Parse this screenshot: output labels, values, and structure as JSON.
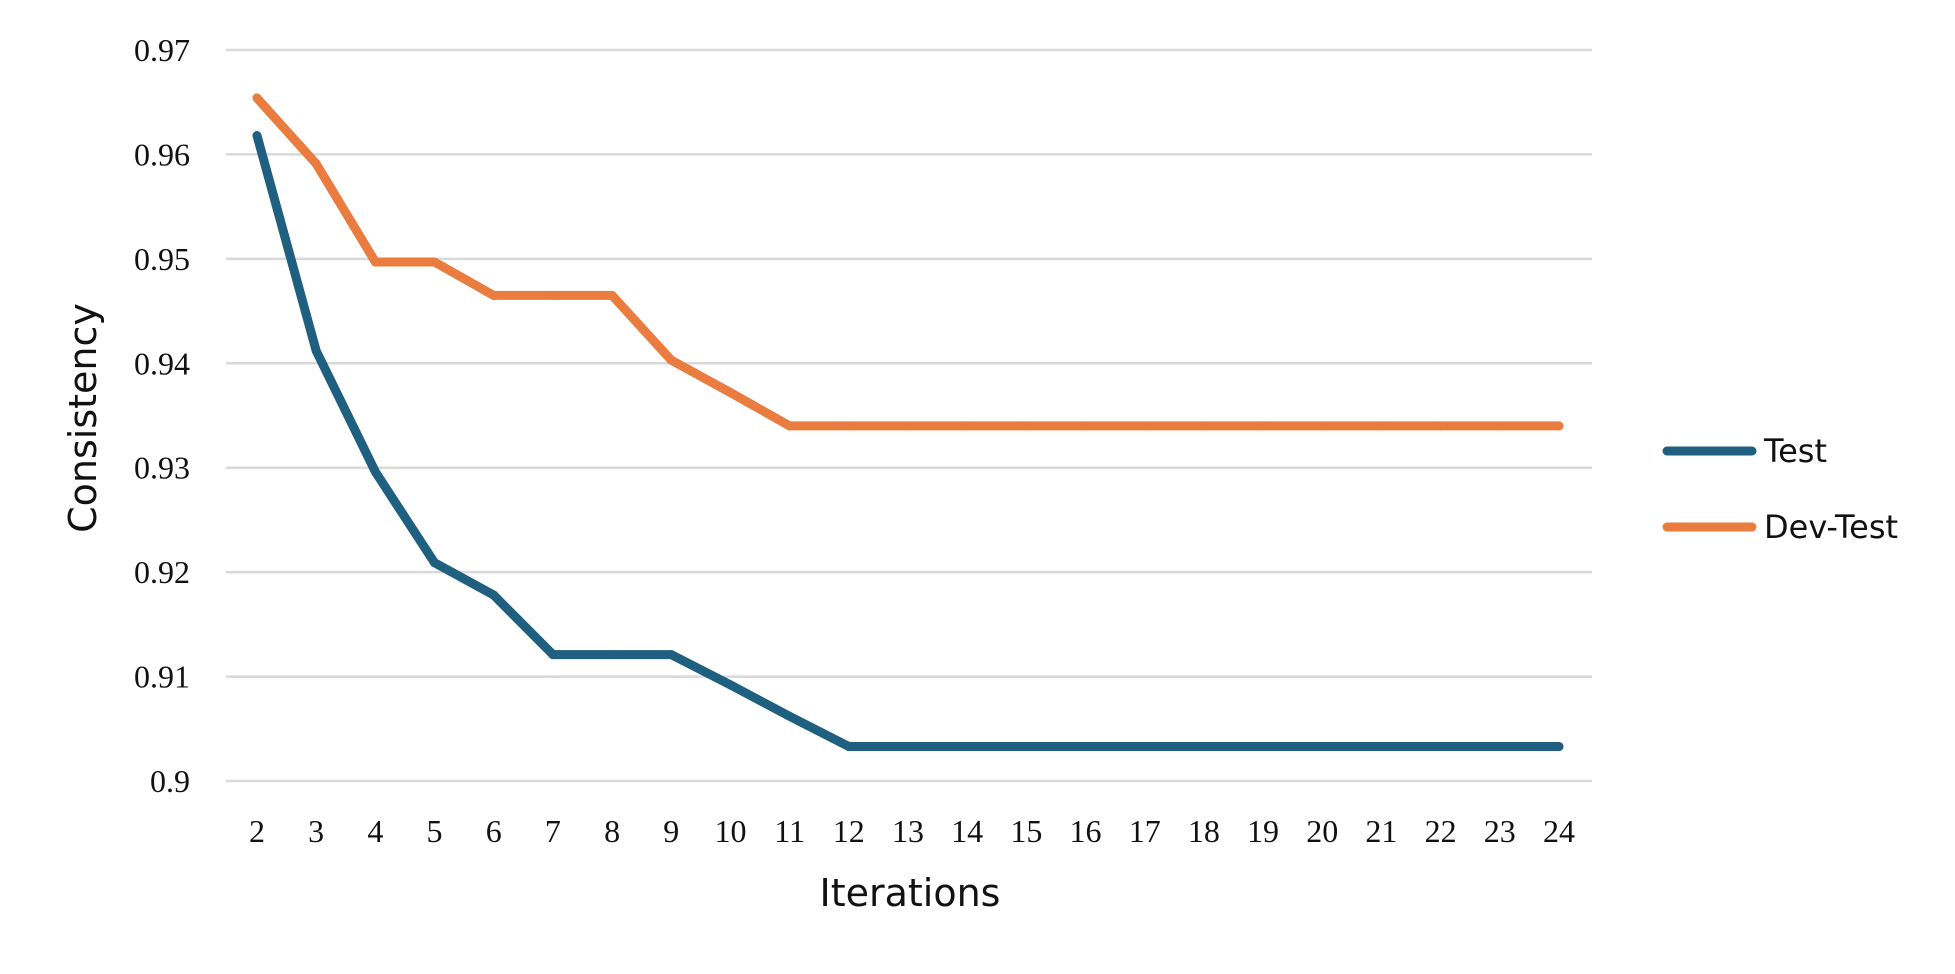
{
  "chart_data": {
    "type": "line",
    "title": "",
    "xlabel": "Iterations",
    "ylabel": "Consistency",
    "categories": [
      "2",
      "3",
      "4",
      "5",
      "6",
      "7",
      "8",
      "9",
      "10",
      "11",
      "12",
      "13",
      "14",
      "15",
      "16",
      "17",
      "18",
      "19",
      "20",
      "21",
      "22",
      "23",
      "24"
    ],
    "ylim": [
      0.9,
      0.97
    ],
    "yticks": [
      "0.9",
      "0.91",
      "0.92",
      "0.93",
      "0.94",
      "0.95",
      "0.96",
      "0.97"
    ],
    "grid": true,
    "legend_position": "right",
    "series": [
      {
        "name": "Test",
        "color": "#1f5f7f",
        "values": [
          0.9618,
          0.9412,
          0.9296,
          0.9209,
          0.9178,
          0.9121,
          0.9121,
          0.9121,
          0.9092,
          0.9062,
          0.9033,
          0.9033,
          0.9033,
          0.9033,
          0.9033,
          0.9033,
          0.9033,
          0.9033,
          0.9033,
          0.9033,
          0.9033,
          0.9033,
          0.9033
        ]
      },
      {
        "name": "Dev-Test",
        "color": "#e97c3e",
        "values": [
          0.9654,
          0.9591,
          0.9497,
          0.9497,
          0.9465,
          0.9465,
          0.9465,
          0.9403,
          0.9372,
          0.934,
          0.934,
          0.934,
          0.934,
          0.934,
          0.934,
          0.934,
          0.934,
          0.934,
          0.934,
          0.934,
          0.934,
          0.934,
          0.934
        ]
      }
    ]
  }
}
